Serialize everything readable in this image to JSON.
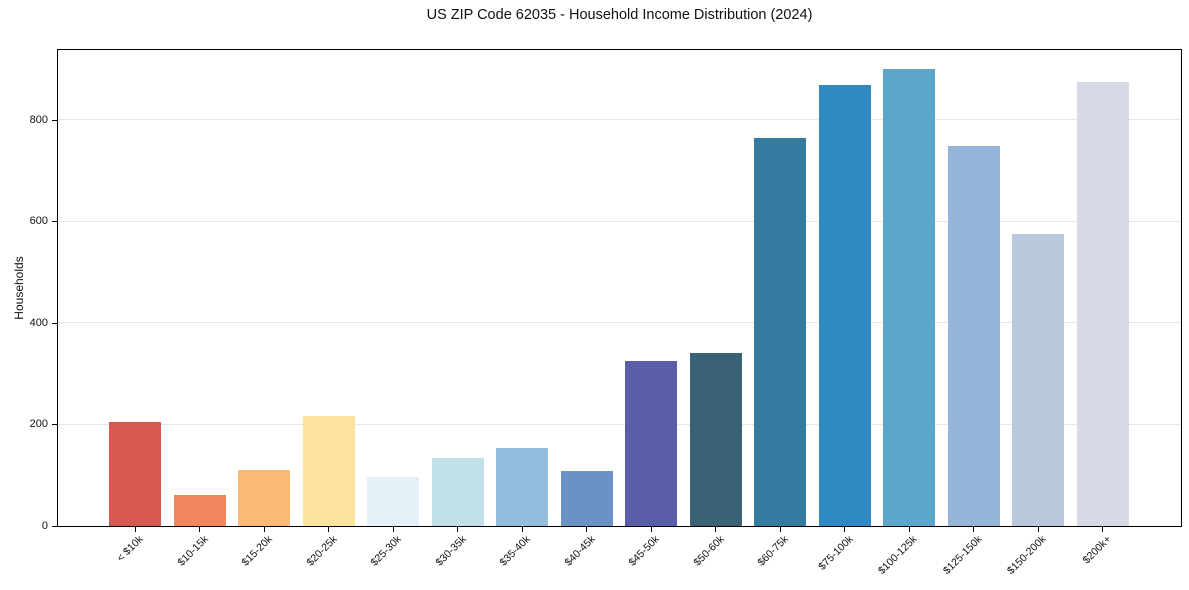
{
  "chart_data": {
    "type": "bar",
    "title": "US ZIP Code 62035 - Household Income Distribution (2024)",
    "xlabel": "",
    "ylabel": "Households",
    "categories": [
      "< $10k",
      "$10-15k",
      "$15-20k",
      "$20-25k",
      "$25-30k",
      "$30-35k",
      "$35-40k",
      "$40-45k",
      "$45-50k",
      "$50-60k",
      "$60-75k",
      "$75-100k",
      "$100-125k",
      "$125-150k",
      "$150-200k",
      "$200k+"
    ],
    "values": [
      205,
      62,
      110,
      217,
      96,
      135,
      153,
      108,
      325,
      340,
      765,
      869,
      901,
      748,
      576,
      875
    ],
    "bar_colors": [
      "#d6594f",
      "#f0875f",
      "#fcb877",
      "#fde39f",
      "#e4f1f6",
      "#c2e0ea",
      "#92bddc",
      "#6a92c6",
      "#5a5ea8",
      "#3a6176",
      "#357a9f",
      "#2f8ac1",
      "#5ba6cb",
      "#92b5d8",
      "#b9c8dd",
      "#d7d9e7"
    ],
    "yticks": [
      0,
      200,
      400,
      600,
      800
    ],
    "ylim": [
      0,
      938
    ],
    "grid": "horizontal-only",
    "gridline_color": "#e6e6e6",
    "axis_color": "#000000",
    "background_color": "#ffffff",
    "legend": "none"
  }
}
